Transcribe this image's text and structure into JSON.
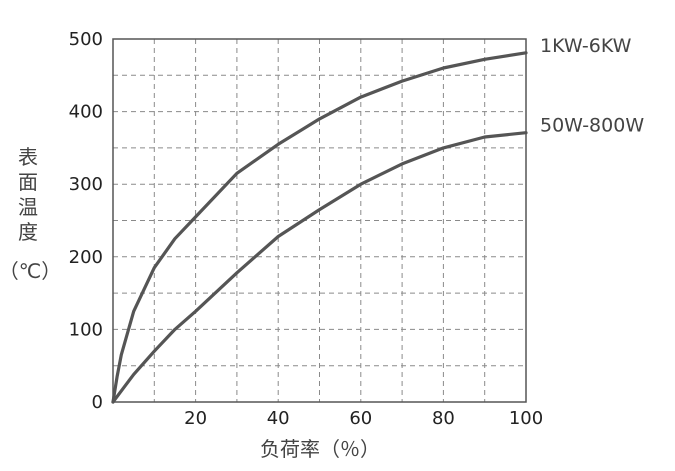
{
  "chart_data": {
    "type": "line",
    "xlabel": "负荷率（％）",
    "ylabel_chars": [
      "表",
      "面",
      "温",
      "度"
    ],
    "ylabel_unit": "（℃）",
    "xlim": [
      0,
      100
    ],
    "ylim": [
      0,
      500
    ],
    "x_ticks": [
      20,
      40,
      60,
      80,
      100
    ],
    "y_ticks": [
      0,
      100,
      200,
      300,
      400,
      500
    ],
    "grid": true,
    "grid_style": "dashed",
    "series": [
      {
        "name": "1KW-6KW",
        "color": "#555555",
        "x": [
          0,
          1,
          2,
          5,
          10,
          15,
          20,
          30,
          40,
          50,
          60,
          70,
          80,
          90,
          100
        ],
        "y": [
          0,
          35,
          65,
          125,
          185,
          225,
          255,
          315,
          355,
          390,
          420,
          442,
          460,
          472,
          481
        ]
      },
      {
        "name": "50W-800W",
        "color": "#555555",
        "x": [
          0,
          5,
          10,
          15,
          20,
          30,
          40,
          50,
          60,
          70,
          80,
          90,
          100
        ],
        "y": [
          0,
          38,
          70,
          100,
          125,
          178,
          228,
          265,
          300,
          328,
          350,
          365,
          371
        ]
      }
    ]
  }
}
